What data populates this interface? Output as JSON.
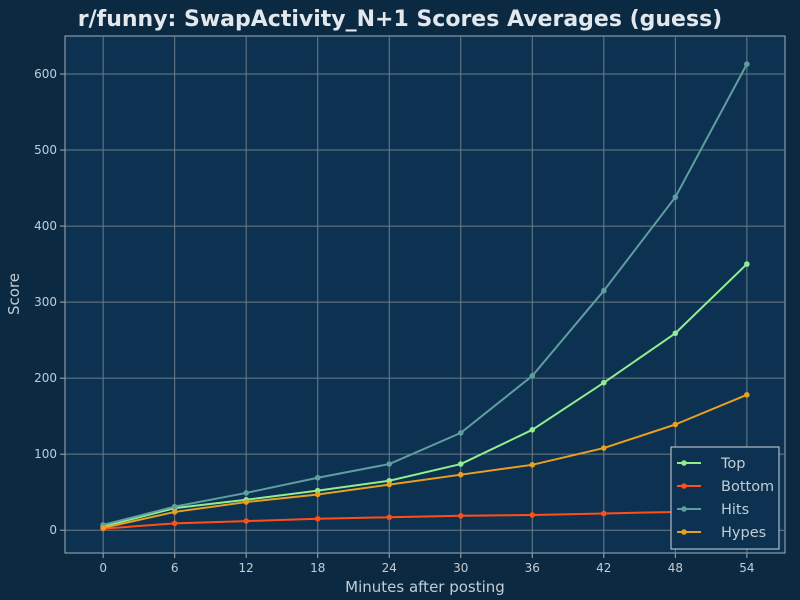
{
  "chart_data": {
    "type": "line",
    "title": "r/funny: SwapActivity_N+1 Scores Averages (guess)",
    "xlabel": "Minutes after posting",
    "ylabel": "Score",
    "x": [
      0,
      6,
      12,
      18,
      24,
      30,
      36,
      42,
      48,
      54
    ],
    "xlim": [
      -3.2,
      57.2
    ],
    "ylim": [
      -30,
      650
    ],
    "xticks": [
      0,
      6,
      12,
      18,
      24,
      30,
      36,
      42,
      48,
      54
    ],
    "yticks": [
      0,
      100,
      200,
      300,
      400,
      500,
      600
    ],
    "grid": true,
    "legend_position": "bottom-right",
    "series": [
      {
        "name": "Top",
        "color": "#90ee90",
        "values": [
          5,
          29,
          40,
          52,
          65,
          87,
          132,
          194,
          259,
          350
        ]
      },
      {
        "name": "Bottom",
        "color": "#ff4f14",
        "values": [
          2,
          9,
          12,
          15,
          17,
          19,
          20,
          22,
          24,
          26
        ]
      },
      {
        "name": "Hits",
        "color": "#5f9ea0",
        "values": [
          7,
          31,
          49,
          69,
          87,
          128,
          203,
          315,
          438,
          613
        ]
      },
      {
        "name": "Hypes",
        "color": "#e8a020",
        "values": [
          3,
          24,
          37,
          47,
          60,
          73,
          86,
          108,
          139,
          178
        ]
      }
    ]
  },
  "colors": {
    "background": "#0b2a42",
    "plot_background": "#0d3150",
    "grid": "#6b7e8a",
    "text": "#c2ccd4"
  }
}
